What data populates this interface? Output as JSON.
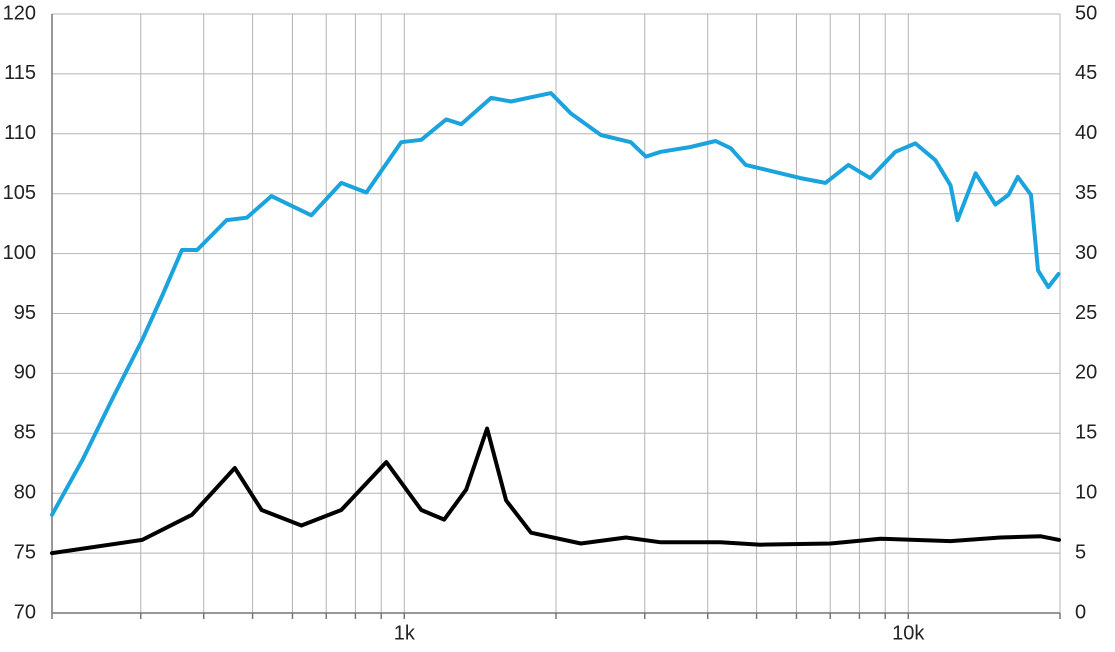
{
  "chart_data": {
    "type": "line",
    "x": [
      200,
      230,
      263,
      302,
      331,
      362,
      388,
      444,
      487,
      545,
      654,
      750,
      841,
      986,
      1081,
      1211,
      1297,
      1487,
      1629,
      1954,
      2140,
      2455,
      2815,
      3014,
      3228,
      3698,
      4146,
      4443,
      4759,
      5451,
      6109,
      6849,
      7607,
      8404,
      9427,
      10330,
      11320,
      12130,
      12520,
      13600,
      14890,
      15800,
      16490,
      17520,
      18090,
      18960,
      19860
    ],
    "series": [
      {
        "color": "#1aa3dd",
        "values": [
          78.2,
          82.8,
          87.8,
          92.8,
          96.5,
          100.3,
          100.3,
          102.8,
          103.0,
          104.8,
          103.2,
          105.9,
          105.1,
          109.3,
          109.5,
          111.2,
          110.8,
          113.0,
          112.7,
          113.4,
          111.7,
          109.9,
          109.3,
          108.1,
          108.5,
          108.9,
          109.4,
          108.8,
          107.4,
          106.8,
          106.3,
          105.9,
          107.4,
          106.3,
          108.5,
          109.2,
          107.8,
          105.7,
          102.8,
          106.7,
          104.1,
          104.9,
          106.4,
          104.9,
          98.6,
          97.2,
          98.3
        ]
      },
      {
        "color": "#000000",
        "axis": "y2",
        "x": [
          200,
          302,
          379,
          461,
          521,
          625,
          750,
          921,
          1081,
          1200,
          1327,
          1460,
          1592,
          1784,
          2240,
          2753,
          3228,
          4241,
          5093,
          7008,
          8805,
          12130,
          15230,
          18320,
          19910
        ],
        "values": [
          5.0,
          6.1,
          8.2,
          12.1,
          8.6,
          7.3,
          8.6,
          12.6,
          8.6,
          7.8,
          10.3,
          15.4,
          9.4,
          6.7,
          5.8,
          6.3,
          5.9,
          5.9,
          5.7,
          5.8,
          6.2,
          6.0,
          6.3,
          6.4,
          6.1
        ]
      }
    ],
    "xlim": [
      200,
      20000
    ],
    "log_x": true,
    "xticks": [
      {
        "value": 1000,
        "label": "1k"
      },
      {
        "value": 10000,
        "label": "10k"
      }
    ],
    "xgrid": [
      200,
      300,
      400,
      500,
      600,
      700,
      800,
      900,
      1000,
      2000,
      3000,
      4000,
      5000,
      6000,
      7000,
      8000,
      9000,
      10000,
      20000
    ],
    "ylim": [
      70,
      120
    ],
    "yticks": [
      70,
      75,
      80,
      85,
      90,
      95,
      100,
      105,
      110,
      115,
      120
    ],
    "y2lim": [
      0,
      50
    ],
    "y2ticks": [
      0,
      5,
      10,
      15,
      20,
      25,
      30,
      35,
      40,
      45,
      50
    ],
    "grid": true
  }
}
